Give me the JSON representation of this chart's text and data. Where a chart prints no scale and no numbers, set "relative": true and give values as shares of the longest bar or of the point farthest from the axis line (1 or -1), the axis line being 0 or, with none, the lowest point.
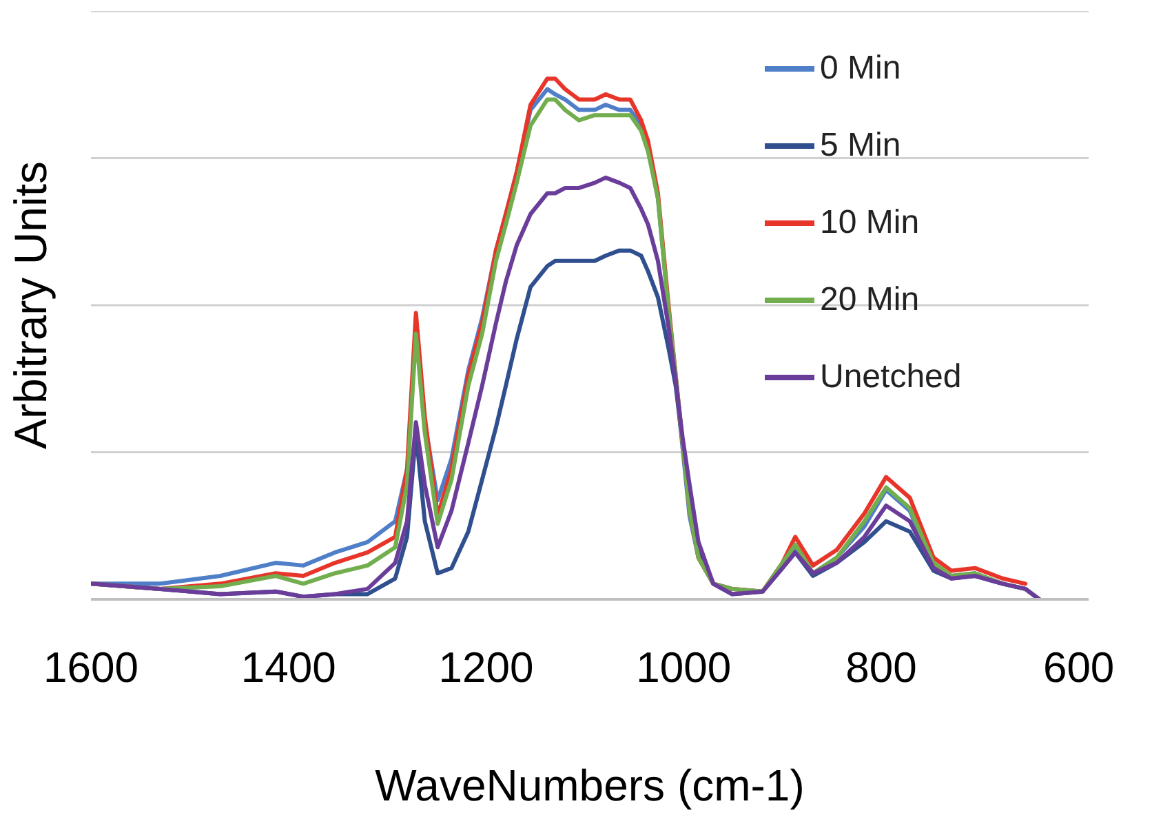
{
  "chart_data": {
    "type": "line",
    "xlabel": "WaveNumbers (cm-1)",
    "ylabel": "Arbitrary Units",
    "relative": true,
    "grid": "y",
    "legend": "top right",
    "marker": "none",
    "line_style": "solid",
    "xlim": [
      1600,
      590
    ],
    "xticks": [
      1600,
      1400,
      1200,
      1000,
      800,
      600
    ],
    "x": [
      1600,
      1530,
      1469,
      1413,
      1385,
      1353,
      1320,
      1292,
      1280,
      1271,
      1262,
      1249,
      1235,
      1218,
      1204,
      1190,
      1180,
      1169,
      1155,
      1138,
      1130,
      1120,
      1106,
      1090,
      1079,
      1065,
      1054,
      1043,
      1036,
      1026,
      1015,
      1008,
      1001,
      994,
      985,
      970,
      951,
      920,
      900,
      887,
      869,
      845,
      817,
      795,
      771,
      747,
      729,
      705,
      677,
      654,
      640
    ],
    "series": [
      {
        "name": "0 Min",
        "color": "#4f7fc8",
        "values": [
          0.03,
          0.03,
          0.045,
          0.07,
          0.065,
          0.09,
          0.11,
          0.15,
          0.25,
          null,
          0.34,
          0.19,
          0.27,
          0.44,
          0.54,
          0.67,
          0.74,
          0.82,
          0.94,
          0.98,
          0.97,
          0.96,
          0.94,
          0.94,
          0.95,
          0.94,
          0.94,
          0.91,
          0.87,
          0.77,
          0.55,
          0.42,
          0.29,
          0.16,
          0.08,
          0.03,
          0.02,
          0.015,
          0.06,
          0.1,
          0.05,
          0.08,
          0.14,
          0.21,
          0.17,
          0.065,
          0.045,
          0.05,
          0.03,
          0.02,
          0.0
        ]
      },
      {
        "name": "5 Min",
        "color": "#2f4f8f",
        "values": [
          0.03,
          0.02,
          0.01,
          0.015,
          0.005,
          0.01,
          0.01,
          0.04,
          0.12,
          0.32,
          0.15,
          0.05,
          0.06,
          0.13,
          0.23,
          0.33,
          0.41,
          0.5,
          0.6,
          0.64,
          0.65,
          0.65,
          0.65,
          0.65,
          0.66,
          0.67,
          0.67,
          0.66,
          0.63,
          0.58,
          0.48,
          0.41,
          0.3,
          0.19,
          0.1,
          0.03,
          0.01,
          0.015,
          0.06,
          0.09,
          0.045,
          0.07,
          0.11,
          0.15,
          0.13,
          0.055,
          0.04,
          0.045,
          0.03,
          0.02,
          0.0
        ]
      },
      {
        "name": "10 Min",
        "color": "#e8352a",
        "values": [
          0.03,
          0.02,
          0.03,
          0.05,
          0.045,
          0.07,
          0.09,
          0.12,
          0.25,
          0.55,
          0.35,
          0.16,
          0.25,
          0.43,
          0.53,
          0.67,
          0.74,
          0.82,
          0.95,
          1.0,
          1.0,
          0.98,
          0.96,
          0.96,
          0.97,
          0.96,
          0.96,
          0.92,
          0.88,
          0.78,
          0.56,
          0.43,
          0.3,
          0.17,
          0.08,
          0.03,
          0.02,
          0.015,
          0.07,
          0.12,
          0.065,
          0.095,
          0.165,
          0.235,
          0.195,
          0.08,
          0.055,
          0.06,
          0.04,
          0.03,
          null
        ]
      },
      {
        "name": "20 Min",
        "color": "#72ad4e",
        "values": [
          0.03,
          0.02,
          0.025,
          0.045,
          0.03,
          0.05,
          0.065,
          0.1,
          0.22,
          0.51,
          0.32,
          0.145,
          0.23,
          0.41,
          0.51,
          0.65,
          0.72,
          0.8,
          0.91,
          0.96,
          0.96,
          0.94,
          0.92,
          0.93,
          0.93,
          0.93,
          0.93,
          0.9,
          0.86,
          0.77,
          0.55,
          0.43,
          0.3,
          0.17,
          0.08,
          0.03,
          0.02,
          0.015,
          0.07,
          0.105,
          0.05,
          0.08,
          0.15,
          0.215,
          0.175,
          0.07,
          0.045,
          0.05,
          0.03,
          0.02,
          0.0
        ]
      },
      {
        "name": "Unetched",
        "color": "#6a3d9a",
        "values": [
          0.03,
          0.02,
          0.01,
          0.015,
          0.005,
          0.01,
          0.02,
          0.07,
          0.15,
          0.34,
          0.22,
          0.1,
          0.17,
          0.3,
          0.41,
          0.53,
          0.61,
          0.68,
          0.74,
          0.78,
          0.78,
          0.79,
          0.79,
          0.8,
          0.81,
          0.8,
          0.79,
          0.75,
          0.72,
          0.65,
          0.52,
          0.42,
          0.31,
          0.22,
          0.11,
          0.03,
          0.01,
          0.015,
          0.06,
          0.09,
          0.05,
          0.07,
          0.12,
          0.18,
          0.15,
          0.06,
          0.04,
          0.045,
          0.03,
          0.02,
          0.0
        ]
      }
    ]
  }
}
